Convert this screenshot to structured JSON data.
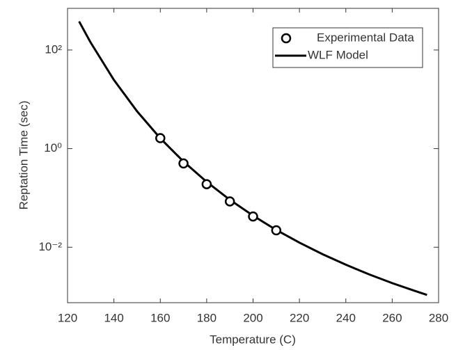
{
  "chart_data": {
    "type": "line",
    "x_label": "Temperature (C)",
    "y_label": "Reptation Time (sec)",
    "xlim": [
      120,
      280
    ],
    "xticks": [
      120,
      140,
      160,
      180,
      200,
      220,
      240,
      260,
      280
    ],
    "ylim": [
      0.00075,
      700
    ],
    "yticks": [
      {
        "value": 0.01,
        "label": "10⁻²"
      },
      {
        "value": 1,
        "label": "10⁰"
      },
      {
        "value": 100,
        "label": "10²"
      }
    ],
    "y_scale": "log",
    "grid": false,
    "legend": "top-right",
    "series": [
      {
        "name": "Experimental Data",
        "type": "scatter",
        "color": "#000000",
        "x": [
          160,
          170,
          180,
          190,
          200,
          210
        ],
        "values": [
          1.63,
          0.5,
          0.19,
          0.085,
          0.042,
          0.022
        ]
      },
      {
        "name": "WLF Model",
        "type": "line",
        "color": "#000000",
        "x": [
          125,
          130,
          140,
          150,
          160,
          170,
          180,
          190,
          200,
          210,
          220,
          230,
          240,
          250,
          260,
          270,
          275
        ],
        "values": [
          380,
          141,
          24.7,
          5.7,
          1.62,
          0.547,
          0.212,
          0.0916,
          0.0437,
          0.0224,
          0.0124,
          0.00721,
          0.00442,
          0.00282,
          0.00187,
          0.00129,
          0.00108
        ]
      }
    ]
  }
}
